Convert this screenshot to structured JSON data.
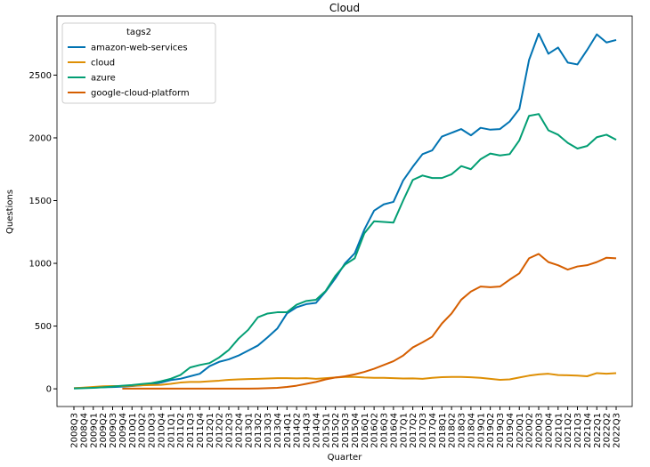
{
  "chart_data": {
    "type": "line",
    "title": "Cloud",
    "x_label": "Quarter",
    "y_label": "Questions",
    "legend_title": "tags2",
    "legend_position": "upper left",
    "categories": [
      "2008Q3",
      "2008Q4",
      "2009Q1",
      "2009Q2",
      "2009Q3",
      "2009Q4",
      "2010Q1",
      "2010Q2",
      "2010Q3",
      "2010Q4",
      "2011Q1",
      "2011Q2",
      "2011Q3",
      "2011Q4",
      "2012Q1",
      "2012Q2",
      "2012Q3",
      "2012Q4",
      "2013Q1",
      "2013Q2",
      "2013Q3",
      "2013Q4",
      "2014Q1",
      "2014Q2",
      "2014Q3",
      "2014Q4",
      "2015Q1",
      "2015Q2",
      "2015Q3",
      "2015Q4",
      "2016Q1",
      "2016Q2",
      "2016Q3",
      "2016Q4",
      "2017Q1",
      "2017Q2",
      "2017Q3",
      "2017Q4",
      "2018Q1",
      "2018Q2",
      "2018Q3",
      "2018Q4",
      "2019Q1",
      "2019Q2",
      "2019Q3",
      "2019Q4",
      "2020Q1",
      "2020Q2",
      "2020Q3",
      "2020Q4",
      "2021Q1",
      "2021Q2",
      "2021Q3",
      "2021Q4",
      "2022Q1",
      "2022Q2",
      "2022Q3"
    ],
    "series": [
      {
        "name": "amazon-web-services",
        "color": "#0173b2",
        "values": [
          5,
          8,
          10,
          12,
          14,
          18,
          22,
          28,
          35,
          50,
          70,
          80,
          100,
          120,
          180,
          215,
          235,
          265,
          305,
          345,
          410,
          480,
          600,
          650,
          675,
          685,
          775,
          880,
          1000,
          1080,
          1270,
          1420,
          1470,
          1490,
          1660,
          1770,
          1870,
          1900,
          2010,
          2040,
          2070,
          2020,
          2080,
          2065,
          2070,
          2130,
          2230,
          2620,
          2830,
          2670,
          2720,
          2600,
          2585,
          2700,
          2825,
          2760,
          2780
        ]
      },
      {
        "name": "cloud",
        "color": "#de8f05",
        "values": [
          5,
          10,
          15,
          20,
          22,
          22,
          25,
          28,
          30,
          32,
          40,
          50,
          55,
          55,
          60,
          65,
          72,
          75,
          78,
          80,
          82,
          85,
          85,
          83,
          85,
          80,
          85,
          90,
          95,
          95,
          90,
          88,
          88,
          85,
          82,
          83,
          80,
          88,
          93,
          95,
          95,
          92,
          88,
          80,
          72,
          75,
          90,
          105,
          115,
          120,
          110,
          108,
          105,
          100,
          125,
          120,
          125
        ]
      },
      {
        "name": "azure",
        "color": "#029e73",
        "values": [
          3,
          5,
          8,
          12,
          18,
          25,
          30,
          38,
          45,
          60,
          80,
          110,
          170,
          190,
          205,
          250,
          310,
          400,
          470,
          570,
          600,
          610,
          610,
          670,
          700,
          710,
          780,
          900,
          990,
          1040,
          1240,
          1335,
          1330,
          1325,
          1500,
          1665,
          1700,
          1680,
          1680,
          1710,
          1775,
          1750,
          1830,
          1875,
          1860,
          1870,
          1980,
          2175,
          2190,
          2060,
          2025,
          1960,
          1915,
          1935,
          2005,
          2025,
          1985
        ]
      },
      {
        "name": "google-cloud-platform",
        "color": "#d55e00",
        "values": [
          null,
          null,
          null,
          null,
          null,
          2,
          2,
          2,
          2,
          2,
          2,
          2,
          2,
          2,
          2,
          2,
          2,
          2,
          2,
          3,
          5,
          8,
          15,
          25,
          40,
          55,
          75,
          90,
          100,
          115,
          135,
          160,
          190,
          220,
          265,
          330,
          370,
          415,
          520,
          600,
          710,
          775,
          815,
          810,
          815,
          870,
          920,
          1040,
          1075,
          1010,
          985,
          950,
          975,
          985,
          1010,
          1045,
          1040
        ]
      }
    ],
    "ylim": [
      -141,
      2971
    ],
    "yticks": [
      0,
      500,
      1000,
      1500,
      2000,
      2500
    ]
  }
}
